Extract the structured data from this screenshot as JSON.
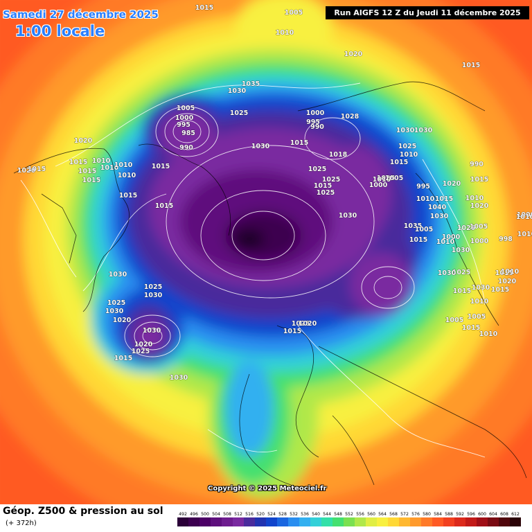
{
  "header": {
    "date_label": "Samedi 27 décembre 2025",
    "time_label": "1:00 locale",
    "run_label": "Run AIGFS 12 Z du Jeudi 11 décembre 2025"
  },
  "credit": "Copyright © 2025 Meteociel.fr",
  "footer": {
    "title": "Géop. Z500 & pression au sol",
    "lead_time": "(+ 372h)"
  },
  "legend": {
    "labels": [
      "492",
      "496",
      "500",
      "504",
      "508",
      "512",
      "516",
      "520",
      "524",
      "528",
      "532",
      "536",
      "540",
      "544",
      "548",
      "552",
      "556",
      "560",
      "564",
      "568",
      "572",
      "576",
      "580",
      "584",
      "588",
      "592",
      "596",
      "600",
      "604",
      "608",
      "612"
    ],
    "colors": [
      "#2b0038",
      "#3d0050",
      "#4c0066",
      "#5e0f7d",
      "#6e1c8f",
      "#7a2aa0",
      "#4a2b9c",
      "#2233b0",
      "#1144cc",
      "#1a66e0",
      "#2a8ef0",
      "#33b0f0",
      "#33d0d8",
      "#33e0a8",
      "#44e070",
      "#7ae050",
      "#b0e84a",
      "#e0ee44",
      "#f8f040",
      "#ffd836",
      "#ffb830",
      "#ff9a2c",
      "#ff7a28",
      "#ff5a24",
      "#f24020",
      "#dc2a1c",
      "#c21a18",
      "#a00e16",
      "#7a0a12",
      "#50060c",
      "#2a0206"
    ]
  },
  "map": {
    "pressure_labels": [
      "1015",
      "1005",
      "1010",
      "1020",
      "1015",
      "1030",
      "1035",
      "1025",
      "1005",
      "1000",
      "995",
      "985",
      "990",
      "1000",
      "995",
      "990",
      "1028",
      "1020",
      "1015",
      "1020",
      "1015",
      "1010",
      "1015",
      "1015",
      "1010",
      "1015",
      "1010",
      "1010",
      "1025",
      "1030",
      "1015",
      "1018",
      "1030",
      "1030",
      "1025",
      "1015",
      "1025",
      "1025",
      "1015",
      "1025",
      "1030",
      "1010",
      "1015",
      "1015",
      "1010",
      "1000",
      "1005",
      "995",
      "990",
      "1015",
      "1020",
      "1010",
      "1015",
      "1010",
      "1040",
      "1035",
      "1030",
      "1020",
      "1025",
      "1000",
      "1005",
      "1000",
      "998",
      "1000",
      "1005",
      "1015",
      "1010",
      "1030",
      "1025",
      "1030",
      "1030",
      "1010",
      "1015",
      "1005",
      "1005",
      "1010",
      "1015",
      "1020",
      "1015",
      "1015",
      "1010",
      "1010",
      "1010",
      "1030",
      "1025",
      "1030",
      "1020",
      "1025",
      "1030",
      "1030",
      "1020",
      "1015",
      "1025",
      "1030",
      "1015",
      "1025",
      "1020"
    ]
  },
  "colors": {
    "header_text": "#2a7fff",
    "run_bg": "#000000",
    "isobar": "#ffffff",
    "coast": "#000000"
  }
}
